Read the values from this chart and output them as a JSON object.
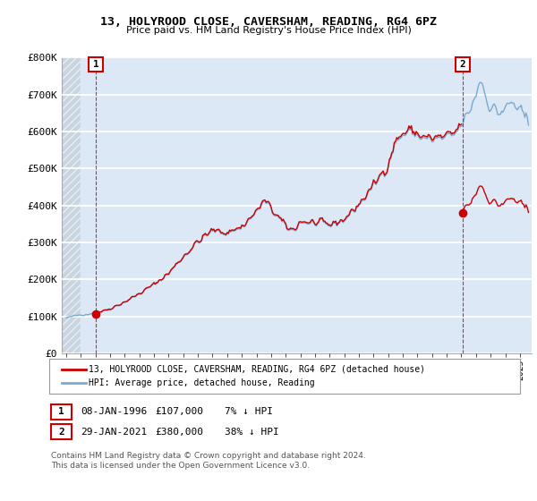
{
  "title": "13, HOLYROOD CLOSE, CAVERSHAM, READING, RG4 6PZ",
  "subtitle": "Price paid vs. HM Land Registry's House Price Index (HPI)",
  "legend_line1": "13, HOLYROOD CLOSE, CAVERSHAM, READING, RG4 6PZ (detached house)",
  "legend_line2": "HPI: Average price, detached house, Reading",
  "footer": "Contains HM Land Registry data © Crown copyright and database right 2024.\nThis data is licensed under the Open Government Licence v3.0.",
  "annotation1": {
    "label": "1",
    "date": "08-JAN-1996",
    "price": "£107,000",
    "hpi": "7% ↓ HPI"
  },
  "annotation2": {
    "label": "2",
    "date": "29-JAN-2021",
    "price": "£380,000",
    "hpi": "38% ↓ HPI"
  },
  "price_color": "#cc0000",
  "hpi_color": "#7aaad0",
  "background_plot": "#dce8f5",
  "background_hatch": "#c8d4e0",
  "grid_color": "#b8c8dc",
  "ylim": [
    0,
    800000
  ],
  "yticks": [
    0,
    100000,
    200000,
    300000,
    400000,
    500000,
    600000,
    700000,
    800000
  ],
  "ytick_labels": [
    "£0",
    "£100K",
    "£200K",
    "£300K",
    "£400K",
    "£500K",
    "£600K",
    "£700K",
    "£800K"
  ],
  "xlim_start": 1993.7,
  "xlim_end": 2025.8,
  "marker1_x": 1996.04,
  "marker1_y": 107000,
  "marker2_x": 2021.08,
  "marker2_y": 380000,
  "hpi_base_y": 115000,
  "sale1_y": 107000,
  "sale2_y": 380000,
  "sale1_x": 1996.04,
  "sale2_x": 2021.08
}
